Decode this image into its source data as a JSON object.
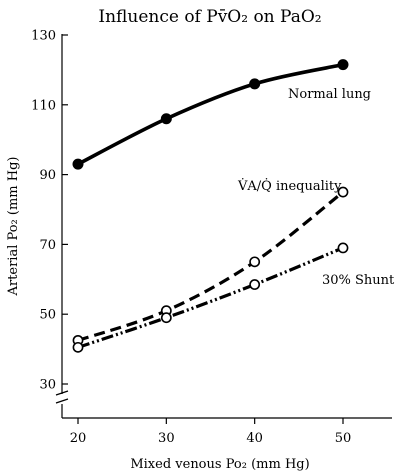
{
  "chart_data": {
    "type": "line",
    "title": "Influence of Pv̄O₂ on PaO₂",
    "xlabel": "Mixed venous Po₂ (mm Hg)",
    "ylabel": "Arterial Po₂ (mm Hg)",
    "x": [
      20,
      30,
      40,
      50
    ],
    "xlim": [
      18,
      57
    ],
    "ylim": [
      25,
      130
    ],
    "xticks": [
      "20",
      "30",
      "40",
      "50"
    ],
    "yticks": [
      "30",
      "50",
      "70",
      "90",
      "110",
      "130"
    ],
    "y_axis_break": true,
    "grid": false,
    "series": [
      {
        "name": "Normal lung",
        "values": [
          93,
          106,
          116,
          121.5
        ],
        "marker": "filled-circle",
        "line_style": "solid",
        "color": "#000000"
      },
      {
        "name": "V̇A/Q̇ inequality",
        "values": [
          42.5,
          51,
          65,
          85
        ],
        "marker": "open-circle",
        "line_style": "dashed",
        "color": "#000000"
      },
      {
        "name": "30% Shunt",
        "values": [
          40.5,
          49,
          58.5,
          69
        ],
        "marker": "open-circle",
        "line_style": "dash-dot-dot",
        "color": "#000000"
      }
    ]
  }
}
